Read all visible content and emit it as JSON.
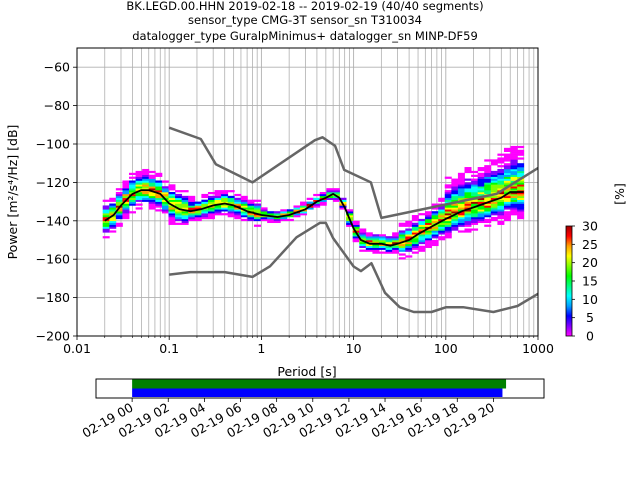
{
  "header": {
    "title_line1": "BK.LEGD.00.HHN   2019-02-18 -- 2019-02-19  (40/40 segments)",
    "title_line2": "sensor_type CMG-3T sensor_sn T310034",
    "title_line3": "datalogger_type GuralpMinimus+ datalogger_sn MINP-DF59"
  },
  "colors": {
    "noise_model": "#666666",
    "mode_line": "#000000",
    "grid": "#b0b0b0",
    "coverage_green": "#008000",
    "coverage_blue": "#0000ff"
  },
  "chart_data": [
    {
      "type": "heatmap",
      "xlabel": "Period [s]",
      "ylabel": "Power [m²/s⁴/Hz] [dB]",
      "x_scale": "log",
      "xlim": [
        0.01,
        1000
      ],
      "ylim": [
        -200,
        -50
      ],
      "x_ticks": [
        {
          "value": 0.01,
          "label": "0.01"
        },
        {
          "value": 0.1,
          "label": "0.1"
        },
        {
          "value": 1,
          "label": "1"
        },
        {
          "value": 10,
          "label": "10"
        },
        {
          "value": 100,
          "label": "100"
        },
        {
          "value": 1000,
          "label": "1000"
        }
      ],
      "y_ticks": [
        {
          "value": -60,
          "label": "−60"
        },
        {
          "value": -80,
          "label": "−80"
        },
        {
          "value": -100,
          "label": "−100"
        },
        {
          "value": -120,
          "label": "−120"
        },
        {
          "value": -140,
          "label": "−140"
        },
        {
          "value": -160,
          "label": "−160"
        },
        {
          "value": -180,
          "label": "−180"
        },
        {
          "value": -200,
          "label": "−200"
        }
      ],
      "grid": true,
      "noise_model_high": {
        "x": [
          0.1,
          0.22,
          0.32,
          0.8,
          3.8,
          4.6,
          6.3,
          7.9,
          15.4,
          20,
          354.8,
          1000
        ],
        "y": [
          -91.5,
          -97.4,
          -110.5,
          -120,
          -98,
          -96.5,
          -101,
          -113.5,
          -120,
          -138.5,
          -126,
          -112.5
        ]
      },
      "noise_model_low": {
        "x": [
          0.1,
          0.17,
          0.4,
          0.8,
          1.24,
          2.4,
          4.3,
          5,
          6,
          10,
          12,
          15.6,
          21.9,
          31.6,
          45,
          70,
          101,
          154,
          328,
          600,
          1000
        ],
        "y": [
          -168,
          -166.7,
          -166.7,
          -169.2,
          -163.7,
          -148.6,
          -141.1,
          -141.1,
          -149,
          -163.8,
          -166.2,
          -162.1,
          -177.5,
          -185,
          -187.5,
          -187.5,
          -185,
          -185,
          -187.5,
          -184.4,
          -178
        ]
      },
      "mode_line": {
        "x": [
          0.02,
          0.025,
          0.03,
          0.04,
          0.05,
          0.06,
          0.08,
          0.1,
          0.13,
          0.17,
          0.22,
          0.3,
          0.4,
          0.5,
          0.7,
          1,
          1.5,
          2,
          3,
          4,
          5,
          6,
          7,
          8,
          10,
          12,
          15,
          20,
          25,
          30,
          40,
          50,
          70,
          100,
          150,
          200,
          300,
          400,
          500,
          700
        ],
        "y": [
          -140,
          -137,
          -132,
          -126,
          -124,
          -124,
          -126,
          -131,
          -134,
          -135,
          -134,
          -132,
          -131,
          -132,
          -135,
          -137,
          -138,
          -137,
          -134,
          -130,
          -128,
          -126,
          -128,
          -133,
          -144,
          -150,
          -152,
          -152,
          -153,
          -152,
          -150,
          -147,
          -143,
          -139,
          -135,
          -133,
          -130,
          -128,
          -125,
          -125
        ]
      },
      "colorbar": {
        "label": "[%]",
        "range": [
          0,
          30
        ],
        "ticks": [
          0,
          5,
          10,
          15,
          20,
          25,
          30
        ],
        "colors": [
          "#ffffff",
          "#ff00ff",
          "#8000ff",
          "#0000ff",
          "#00a0ff",
          "#00ffff",
          "#00ff80",
          "#00ff00",
          "#80ff00",
          "#ffff00",
          "#ffa000",
          "#ff0000",
          "#a00000"
        ]
      }
    },
    {
      "type": "bar",
      "title": "",
      "x_ticks": [
        {
          "hour": 0,
          "label": "02-19 00"
        },
        {
          "hour": 2,
          "label": "02-19 02"
        },
        {
          "hour": 4,
          "label": "02-19 04"
        },
        {
          "hour": 6,
          "label": "02-19 06"
        },
        {
          "hour": 8,
          "label": "02-19 08"
        },
        {
          "hour": 10,
          "label": "02-19 10"
        },
        {
          "hour": 12,
          "label": "02-19 12"
        },
        {
          "hour": 14,
          "label": "02-19 14"
        },
        {
          "hour": 16,
          "label": "02-19 16"
        },
        {
          "hour": 18,
          "label": "02-19 18"
        },
        {
          "hour": 20,
          "label": "02-19 20"
        }
      ],
      "xlim": [
        -2,
        22.8
      ],
      "segments": [
        {
          "row": "data",
          "start": 0,
          "end": 20.7
        },
        {
          "row": "processed",
          "start": 0,
          "end": 20.5
        }
      ]
    }
  ]
}
